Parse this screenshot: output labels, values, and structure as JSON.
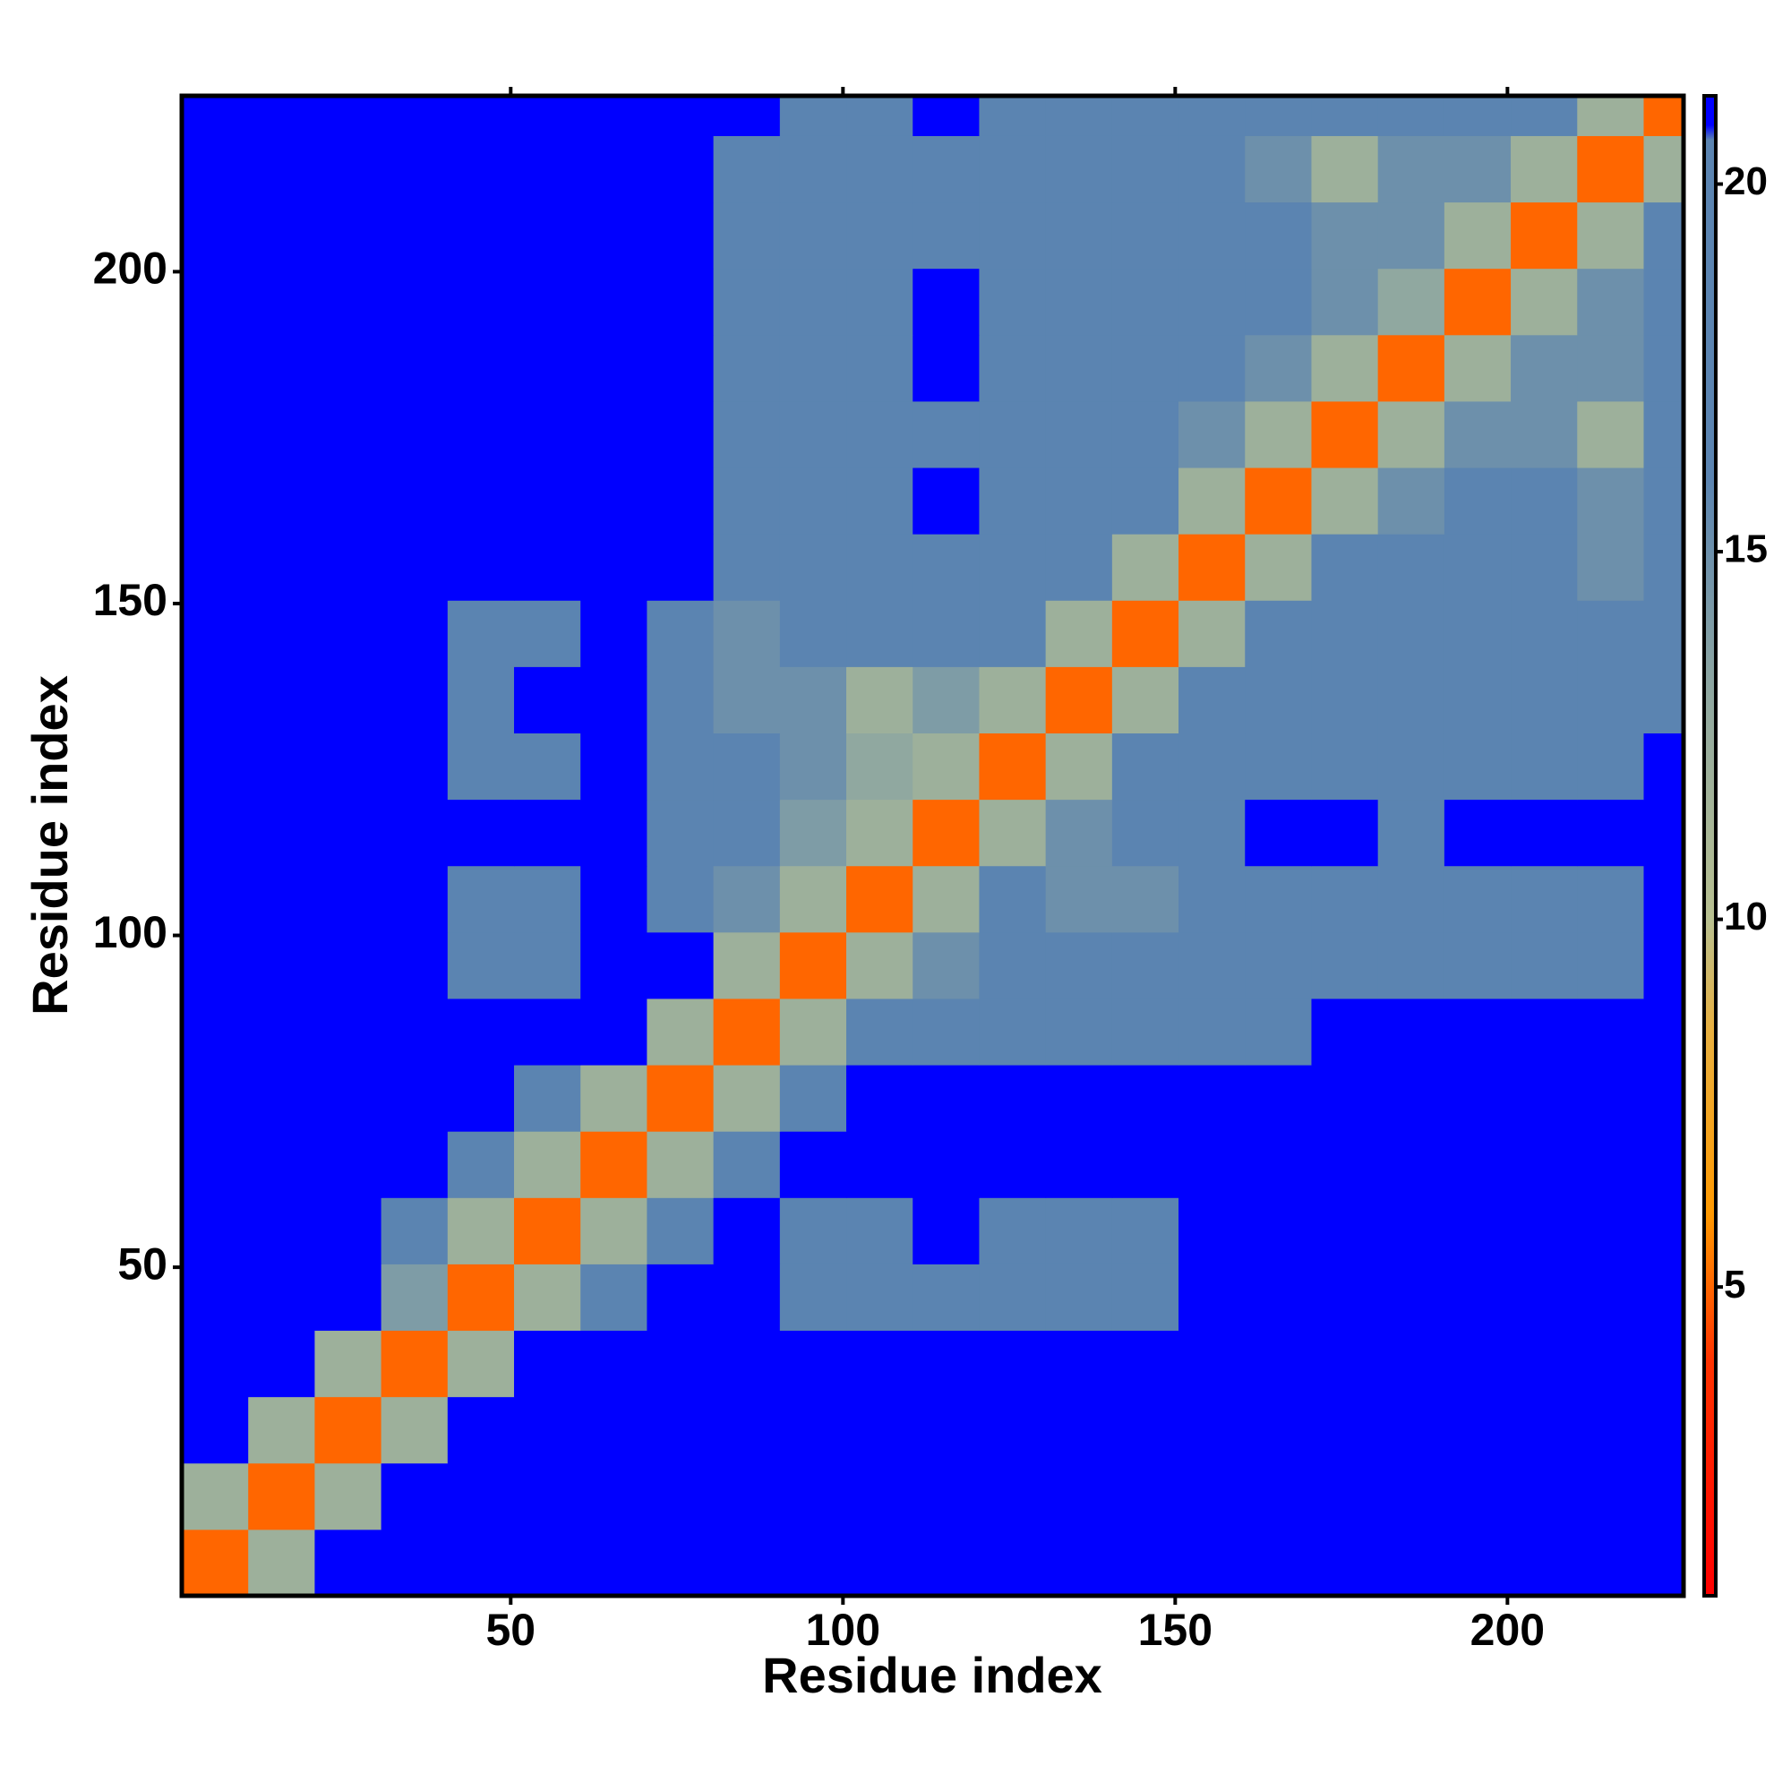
{
  "chart_data": {
    "type": "heatmap",
    "x_label": "Residue index",
    "y_label": "Residue index",
    "xlim": [
      0.5,
      226.5
    ],
    "ylim": [
      0.5,
      226.5
    ],
    "xticks": [
      50,
      100,
      150,
      200
    ],
    "yticks": [
      50,
      100,
      150,
      200
    ],
    "bins": [
      0.5,
      10.5,
      20.5,
      30.5,
      40.5,
      50.5,
      60.5,
      70.5,
      80.5,
      90.5,
      100.5,
      110.5,
      120.5,
      130.5,
      140.5,
      150.5,
      160.5,
      170.5,
      180.5,
      190.5,
      200.5,
      210.5,
      220.5,
      226.5
    ],
    "values": [
      [
        5,
        12,
        21,
        21,
        21,
        21,
        21,
        21,
        21,
        21,
        21,
        21,
        21,
        21,
        21,
        21,
        21,
        21,
        21,
        21,
        21,
        21,
        21
      ],
      [
        12,
        5,
        12,
        21,
        21,
        21,
        21,
        21,
        21,
        21,
        21,
        21,
        21,
        21,
        21,
        21,
        21,
        21,
        21,
        21,
        21,
        21,
        21
      ],
      [
        21,
        12,
        5,
        12,
        21,
        21,
        21,
        21,
        21,
        21,
        21,
        21,
        21,
        21,
        21,
        21,
        21,
        21,
        21,
        21,
        21,
        21,
        21
      ],
      [
        21,
        21,
        12,
        5,
        12,
        21,
        21,
        21,
        21,
        21,
        21,
        21,
        21,
        21,
        21,
        21,
        21,
        21,
        21,
        21,
        21,
        21,
        21
      ],
      [
        21,
        21,
        21,
        14,
        5,
        12,
        16,
        21,
        21,
        20,
        19,
        20,
        20,
        19,
        19,
        21,
        21,
        21,
        21,
        21,
        21,
        21,
        21
      ],
      [
        21,
        21,
        21,
        16,
        12,
        5,
        12,
        20,
        21,
        20,
        20,
        21,
        20,
        20,
        20,
        21,
        21,
        21,
        21,
        21,
        21,
        21,
        21
      ],
      [
        21,
        21,
        21,
        21,
        18,
        12,
        5,
        12,
        20,
        21,
        21,
        21,
        21,
        21,
        21,
        21,
        21,
        21,
        21,
        21,
        21,
        21,
        21
      ],
      [
        21,
        21,
        21,
        21,
        21,
        20,
        12,
        5,
        12,
        19,
        21,
        21,
        21,
        21,
        21,
        21,
        21,
        21,
        21,
        21,
        21,
        21,
        21
      ],
      [
        21,
        21,
        21,
        21,
        21,
        21,
        21,
        12,
        5,
        12,
        17,
        19,
        19,
        19,
        19,
        20,
        20,
        21,
        21,
        21,
        21,
        21,
        21
      ],
      [
        21,
        21,
        21,
        21,
        20,
        20,
        21,
        21,
        12,
        5,
        12,
        15,
        17,
        16,
        18,
        19,
        19,
        19,
        20,
        19,
        19,
        19,
        21
      ],
      [
        21,
        21,
        21,
        21,
        19,
        20,
        21,
        18,
        15,
        12,
        5,
        12,
        16,
        15,
        15,
        19,
        19,
        20,
        19,
        19,
        19,
        19,
        21
      ],
      [
        21,
        21,
        21,
        21,
        21,
        21,
        21,
        19,
        16,
        14,
        12,
        5,
        12,
        15,
        17,
        20,
        21,
        21,
        20,
        21,
        21,
        21,
        21
      ],
      [
        21,
        21,
        21,
        21,
        20,
        20,
        21,
        18,
        16,
        15,
        13,
        12,
        5,
        12,
        16,
        19,
        20,
        19,
        20,
        20,
        19,
        20,
        21
      ],
      [
        21,
        21,
        21,
        21,
        20,
        21,
        21,
        17,
        15,
        15,
        12,
        14,
        12,
        5,
        12,
        17,
        19,
        19,
        19,
        19,
        19,
        19,
        20
      ],
      [
        21,
        21,
        21,
        21,
        18,
        19,
        21,
        18,
        15,
        16,
        16,
        16,
        16,
        12,
        5,
        12,
        19,
        19,
        19,
        19,
        19,
        19,
        19
      ],
      [
        21,
        21,
        21,
        21,
        21,
        21,
        21,
        21,
        19,
        19,
        19,
        20,
        20,
        19,
        12,
        5,
        12,
        16,
        17,
        17,
        16,
        15,
        17
      ],
      [
        21,
        21,
        21,
        21,
        21,
        21,
        21,
        21,
        19,
        19,
        19,
        21,
        20,
        19,
        17,
        12,
        5,
        12,
        15,
        16,
        16,
        15,
        18
      ],
      [
        21,
        21,
        21,
        21,
        21,
        21,
        21,
        21,
        19,
        19,
        20,
        19,
        19,
        19,
        18,
        15,
        12,
        5,
        12,
        15,
        15,
        12,
        17
      ],
      [
        21,
        21,
        21,
        21,
        21,
        21,
        21,
        21,
        20,
        19,
        20,
        21,
        20,
        20,
        18,
        16,
        15,
        12,
        5,
        12,
        15,
        15,
        17
      ],
      [
        21,
        21,
        21,
        21,
        21,
        21,
        21,
        21,
        20,
        19,
        19,
        21,
        20,
        19,
        19,
        17,
        16,
        15,
        13,
        5,
        12,
        15,
        17
      ],
      [
        21,
        21,
        21,
        21,
        21,
        21,
        21,
        21,
        20,
        19,
        19,
        20,
        19,
        19,
        18,
        17,
        16,
        15,
        15,
        12,
        5,
        12,
        16
      ],
      [
        21,
        21,
        21,
        21,
        21,
        21,
        21,
        21,
        19,
        19,
        19,
        20,
        19,
        19,
        18,
        16,
        15,
        12,
        15,
        15,
        12,
        5,
        12
      ],
      [
        21,
        21,
        21,
        21,
        21,
        21,
        21,
        21,
        21,
        20,
        20,
        21,
        20,
        20,
        19,
        16,
        16,
        16,
        16,
        17,
        16,
        12,
        5
      ]
    ],
    "zlim": [
      0.8,
      21.2
    ],
    "zticks": [
      5,
      10,
      15,
      20
    ],
    "colorscale": [
      {
        "value": 0.8,
        "color": "#ff0000"
      },
      {
        "value": 4,
        "color": "#ff3300"
      },
      {
        "value": 6,
        "color": "#ff9900"
      },
      {
        "value": 8.5,
        "color": "#e8b040"
      },
      {
        "value": 10,
        "color": "#b8c090"
      },
      {
        "value": 13,
        "color": "#90a8a0"
      },
      {
        "value": 16,
        "color": "#5b84b1"
      },
      {
        "value": 20.6,
        "color": "#5b84b1"
      },
      {
        "value": 20.8,
        "color": "#0000ff"
      },
      {
        "value": 21.2,
        "color": "#0000ff"
      }
    ]
  }
}
